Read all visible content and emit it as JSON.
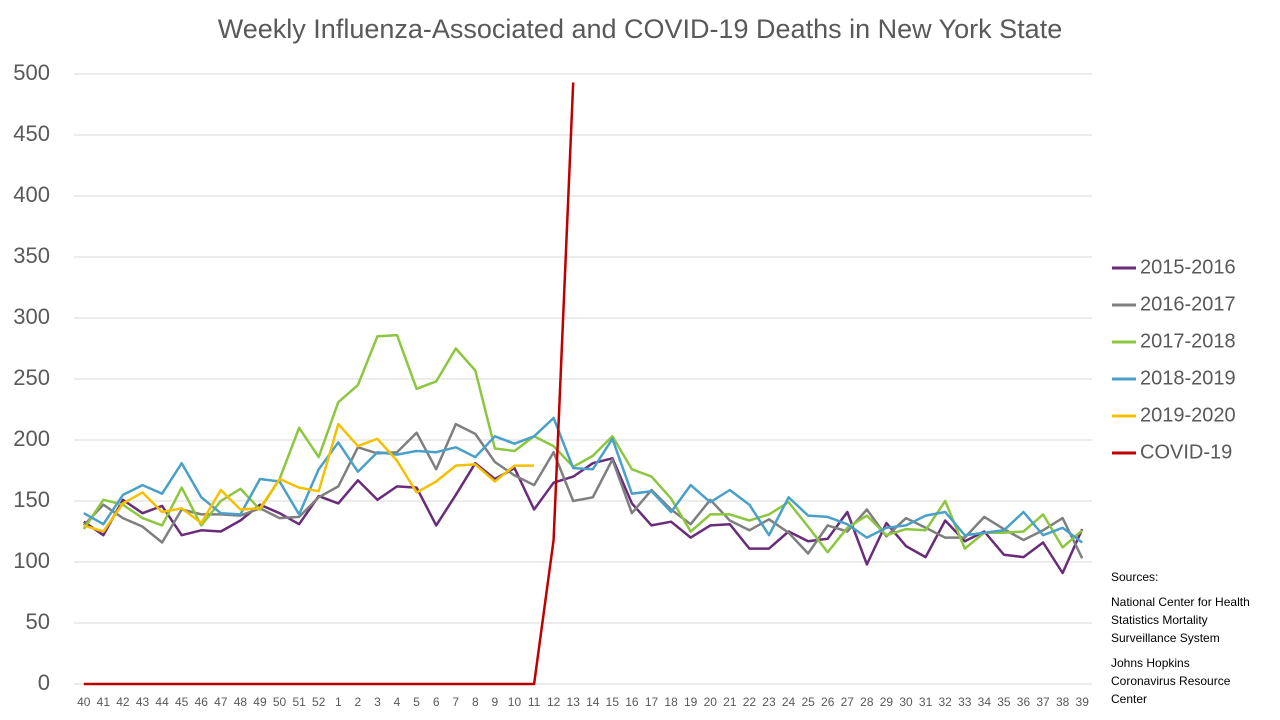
{
  "chart_data": {
    "type": "line",
    "title": "Weekly Influenza-Associated and COVID-19 Deaths in New York State",
    "categories": [
      "40",
      "41",
      "42",
      "43",
      "44",
      "45",
      "46",
      "47",
      "48",
      "49",
      "50",
      "51",
      "52",
      "1",
      "2",
      "3",
      "4",
      "5",
      "6",
      "7",
      "8",
      "9",
      "10",
      "11",
      "12",
      "13",
      "14",
      "15",
      "16",
      "17",
      "18",
      "19",
      "20",
      "21",
      "22",
      "23",
      "24",
      "25",
      "26",
      "27",
      "28",
      "29",
      "30",
      "31",
      "32",
      "33",
      "34",
      "35",
      "36",
      "37",
      "38",
      "39"
    ],
    "series": [
      {
        "name": "2015-2016",
        "color": "#6a2c7a",
        "values": [
          133,
          122,
          151,
          140,
          146,
          122,
          126,
          125,
          134,
          147,
          140,
          131,
          154,
          148,
          167,
          151,
          162,
          161,
          130,
          155,
          181,
          168,
          177,
          143,
          165,
          170,
          181,
          185,
          148,
          130,
          133,
          120,
          130,
          131,
          111,
          111,
          125,
          117,
          119,
          141,
          98,
          132,
          113,
          104,
          134,
          117,
          125,
          106,
          104,
          116,
          91,
          127
        ]
      },
      {
        "name": "2016-2017",
        "color": "#7f7f7f",
        "values": [
          130,
          147,
          136,
          129,
          116,
          143,
          139,
          139,
          138,
          144,
          136,
          137,
          153,
          162,
          194,
          189,
          190,
          206,
          176,
          213,
          205,
          182,
          171,
          163,
          190,
          150,
          153,
          184,
          140,
          159,
          143,
          131,
          151,
          134,
          126,
          135,
          124,
          107,
          130,
          125,
          143,
          121,
          136,
          128,
          120,
          120,
          137,
          127,
          118,
          126,
          136,
          103
        ]
      },
      {
        "name": "2017-2018",
        "color": "#8dc63f",
        "values": [
          127,
          151,
          147,
          136,
          130,
          161,
          130,
          150,
          160,
          143,
          168,
          210,
          186,
          231,
          245,
          285,
          286,
          242,
          248,
          275,
          257,
          193,
          191,
          203,
          195,
          178,
          187,
          203,
          176,
          170,
          152,
          125,
          139,
          139,
          134,
          139,
          149,
          129,
          108,
          128,
          138,
          122,
          127,
          126,
          150,
          111,
          124,
          124,
          125,
          139,
          112,
          126
        ]
      },
      {
        "name": "2018-2019",
        "color": "#4aa0c8",
        "values": [
          140,
          131,
          155,
          163,
          156,
          181,
          153,
          140,
          139,
          168,
          166,
          139,
          176,
          198,
          174,
          190,
          188,
          191,
          190,
          194,
          186,
          203,
          197,
          203,
          218,
          177,
          176,
          201,
          156,
          158,
          141,
          163,
          149,
          159,
          147,
          122,
          153,
          138,
          137,
          131,
          120,
          128,
          130,
          138,
          141,
          122,
          124,
          126,
          141,
          122,
          128,
          116
        ]
      },
      {
        "name": "2019-2020",
        "color": "#f5c000",
        "values": [
          130,
          125,
          148,
          157,
          141,
          144,
          132,
          159,
          143,
          144,
          168,
          161,
          158,
          213,
          195,
          201,
          183,
          157,
          166,
          179,
          180,
          166,
          179,
          179,
          null,
          null,
          null,
          null,
          null,
          null,
          null,
          null,
          null,
          null,
          null,
          null,
          null,
          null,
          null,
          null,
          null,
          null,
          null,
          null,
          null,
          null,
          null,
          null,
          null,
          null,
          null,
          null
        ]
      },
      {
        "name": "COVID-19",
        "color": "#c00000",
        "values": [
          0,
          0,
          0,
          0,
          0,
          0,
          0,
          0,
          0,
          0,
          0,
          0,
          0,
          0,
          0,
          0,
          0,
          0,
          0,
          0,
          0,
          0,
          0,
          0,
          118,
          493,
          null,
          null,
          null,
          null,
          null,
          null,
          null,
          null,
          null,
          null,
          null,
          null,
          null,
          null,
          null,
          null,
          null,
          null,
          null,
          null,
          null,
          null,
          null,
          null,
          null,
          null
        ]
      }
    ],
    "ylim": [
      0,
      500
    ],
    "yticks": [
      0,
      50,
      100,
      150,
      200,
      250,
      300,
      350,
      400,
      450,
      500
    ],
    "grid": true,
    "sources": {
      "heading": "Sources:",
      "lines": [
        "National Center for Health",
        "Statistics Mortality",
        "Surveillance System",
        "Johns Hopkins",
        "Coronavirus Resource",
        "Center"
      ]
    }
  }
}
